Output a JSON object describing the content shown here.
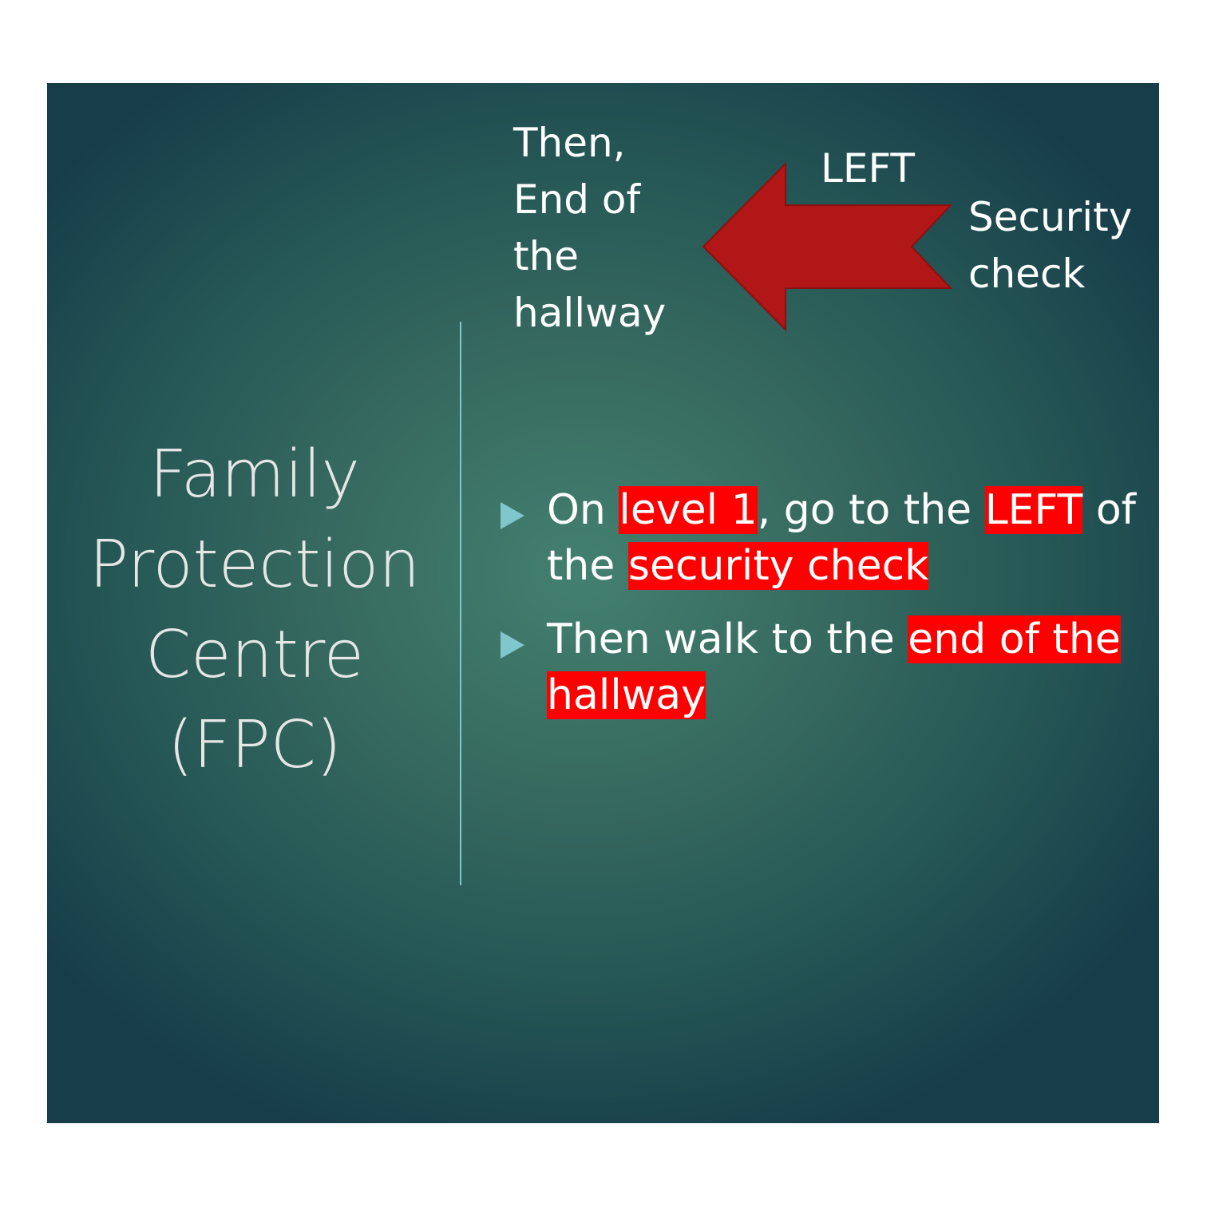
{
  "title": {
    "lines": [
      "Family",
      "Protection",
      "Centre",
      "(FPC)"
    ]
  },
  "callouts": {
    "then_lines": [
      "Then,",
      "End of",
      "the",
      "hallway"
    ],
    "left_label": "LEFT",
    "security_lines": [
      "Security",
      "check"
    ]
  },
  "bullets": [
    {
      "segments": [
        {
          "text": "On ",
          "highlight": false
        },
        {
          "text": "level 1",
          "highlight": true
        },
        {
          "text": ", go to the ",
          "highlight": false
        },
        {
          "text": "LEFT",
          "highlight": true
        },
        {
          "text": " of the ",
          "highlight": false
        },
        {
          "text": "security check",
          "highlight": true
        }
      ]
    },
    {
      "segments": [
        {
          "text": "Then walk to the ",
          "highlight": false
        },
        {
          "text": "end of the hallway",
          "highlight": true
        }
      ]
    }
  ],
  "colors": {
    "highlight": "#ff0000",
    "arrow_fill": "#b01716",
    "accent": "#7fc6cd"
  },
  "icons": {
    "arrow": "arrow-left-icon",
    "bullet": "triangle-right-icon"
  }
}
